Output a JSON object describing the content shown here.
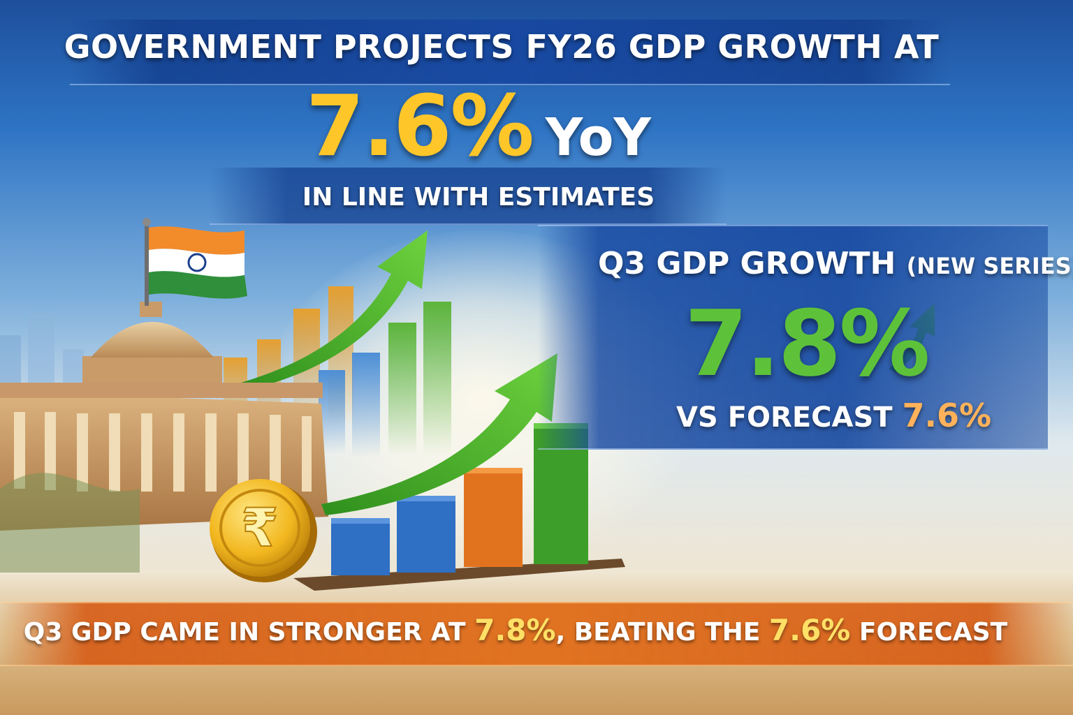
{
  "headline": "GOVERNMENT PROJECTS FY26 GDP GROWTH AT",
  "fy26_growth": {
    "value": "7.6%",
    "unit": "YoY"
  },
  "subheadline": "IN LINE WITH ESTIMATES",
  "q3_panel": {
    "title": "Q3 GDP GROWTH",
    "title_suffix": "(NEW SERIES)",
    "value": "7.8%",
    "comparison_label": "VS FORECAST",
    "comparison_value": "7.6%"
  },
  "bottom_banner": {
    "part1": "Q3 GDP CAME IN STRONGER AT",
    "value1": "7.8%",
    "part2": ", BEATING THE",
    "value2": "7.6%",
    "part3": "FORECAST"
  },
  "colors": {
    "yellow_accent": "#ffc629",
    "green_accent": "#5dc23a",
    "orange_accent": "#e07322",
    "blue_band": "#1d4f9c"
  },
  "icons": [
    "india-flag-icon",
    "parliament-building-icon",
    "rupee-coin-icon",
    "growth-arrow-icon",
    "bar-chart-icon"
  ]
}
